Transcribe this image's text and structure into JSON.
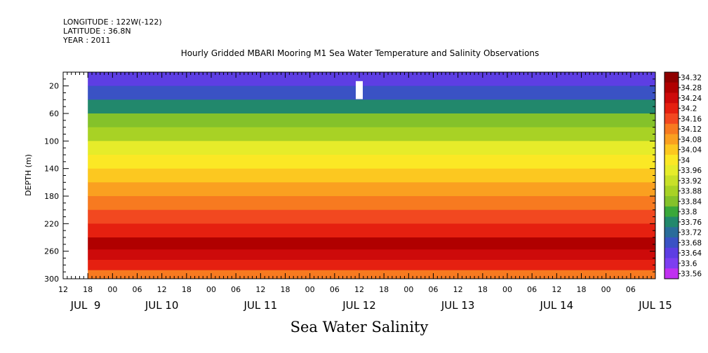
{
  "header": {
    "longitude": "LONGITUDE : 122W(-122)",
    "latitude": "LATITUDE : 36.8N",
    "year": "YEAR : 2011",
    "title": "Hourly Gridded MBARI Mooring M1 Sea Water Temperature and Salinity Observations"
  },
  "chart_data": {
    "type": "heatmap",
    "title": "Hourly Gridded MBARI Mooring M1 Sea Water Temperature and Salinity Observations",
    "xlabel": "Sea Water Salinity",
    "ylabel": "DEPTH (m)",
    "x_start": "2011-07-09 12:00",
    "x_end": "2011-07-15 12:00",
    "data_start": "2011-07-09 18:00",
    "ylim": [
      300,
      0
    ],
    "y_ticks": [
      20,
      60,
      100,
      140,
      180,
      220,
      260,
      300
    ],
    "x_hour_ticks": [
      "12",
      "18",
      "00",
      "06",
      "12",
      "18",
      "00",
      "06",
      "12",
      "18",
      "00",
      "06",
      "12",
      "18",
      "00",
      "06",
      "12",
      "18",
      "00",
      "06",
      "12",
      "18",
      "00",
      "06"
    ],
    "x_day_labels": [
      "JUL  9",
      "JUL 10",
      "JUL 11",
      "JUL 12",
      "JUL 13",
      "JUL 14",
      "JUL 15"
    ],
    "colorbar": {
      "levels": [
        34.32,
        34.28,
        34.24,
        34.2,
        34.16,
        34.12,
        34.08,
        34.04,
        34,
        33.96,
        33.92,
        33.88,
        33.84,
        33.8,
        33.76,
        33.72,
        33.68,
        33.64,
        33.6,
        33.56
      ],
      "colors": [
        "#8e0000",
        "#b00000",
        "#cd0a0a",
        "#e52010",
        "#f24820",
        "#f77a20",
        "#faa020",
        "#fcc820",
        "#fbe825",
        "#e6ec2a",
        "#c8e028",
        "#a8d225",
        "#84c22a",
        "#3aa83a",
        "#22886c",
        "#2a6c9a",
        "#3a52c4",
        "#5d3ee3",
        "#7d3ef0",
        "#c030f0"
      ]
    },
    "depth_profile": [
      {
        "depth": 10,
        "salinity": 33.64
      },
      {
        "depth": 30,
        "salinity": 33.7
      },
      {
        "depth": 50,
        "salinity": 33.77
      },
      {
        "depth": 70,
        "salinity": 33.85
      },
      {
        "depth": 90,
        "salinity": 33.9
      },
      {
        "depth": 110,
        "salinity": 33.96
      },
      {
        "depth": 130,
        "salinity": 34.0
      },
      {
        "depth": 150,
        "salinity": 34.07
      },
      {
        "depth": 170,
        "salinity": 34.1
      },
      {
        "depth": 190,
        "salinity": 34.13
      },
      {
        "depth": 210,
        "salinity": 34.18
      },
      {
        "depth": 230,
        "salinity": 34.22
      },
      {
        "depth": 250,
        "salinity": 34.28
      },
      {
        "depth": 265,
        "salinity": 34.26
      },
      {
        "depth": 280,
        "salinity": 34.2
      },
      {
        "depth": 295,
        "salinity": 34.15
      }
    ],
    "missing_data": {
      "time": "2011-07-12 12:00",
      "depth_range": [
        10,
        30
      ]
    }
  }
}
